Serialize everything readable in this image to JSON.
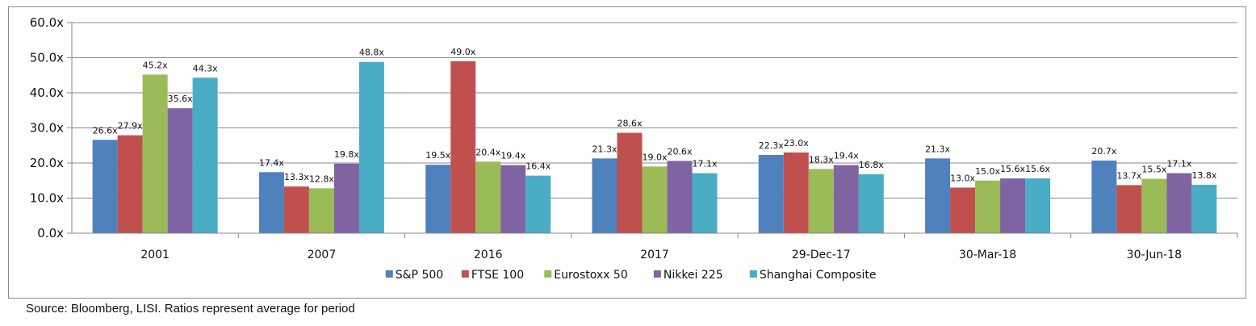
{
  "chart_data": {
    "type": "bar",
    "title": "",
    "xlabel": "",
    "ylabel": "",
    "ylim": [
      0,
      60
    ],
    "y_ticks": [
      "0.0x",
      "10.0x",
      "20.0x",
      "30.0x",
      "40.0x",
      "50.0x",
      "60.0x"
    ],
    "y_tick_values": [
      0,
      10,
      20,
      30,
      40,
      50,
      60
    ],
    "grid": true,
    "legend_position": "bottom",
    "categories": [
      "2001",
      "2007",
      "2016",
      "2017",
      "29-Dec-17",
      "30-Mar-18",
      "30-Jun-18"
    ],
    "series": [
      {
        "name": "S&P 500",
        "color": "#4f81bd",
        "values": [
          26.6,
          17.4,
          19.5,
          21.3,
          22.3,
          21.3,
          20.7
        ],
        "labels": [
          "26.6x",
          "17.4x",
          "19.5x",
          "21.3x",
          "22.3x",
          "21.3x",
          "20.7x"
        ]
      },
      {
        "name": "FTSE 100",
        "color": "#c0504d",
        "values": [
          27.9,
          13.3,
          49.0,
          28.6,
          23.0,
          13.0,
          13.7
        ],
        "labels": [
          "27.9x",
          "13.3x",
          "49.0x",
          "28.6x",
          "23.0x",
          "13.0x",
          "13.7x"
        ]
      },
      {
        "name": "Eurostoxx 50",
        "color": "#9bbb59",
        "values": [
          45.2,
          12.8,
          20.4,
          19.0,
          18.3,
          15.0,
          15.5
        ],
        "labels": [
          "45.2x",
          "12.8x",
          "20.4x",
          "19.0x",
          "18.3x",
          "15.0x",
          "15.5x"
        ]
      },
      {
        "name": "Nikkei 225",
        "color": "#8064a2",
        "values": [
          35.6,
          19.8,
          19.4,
          20.6,
          19.4,
          15.6,
          17.1
        ],
        "labels": [
          "35.6x",
          "19.8x",
          "19.4x",
          "20.6x",
          "19.4x",
          "15.6x",
          "17.1x"
        ]
      },
      {
        "name": "Shanghai Composite",
        "color": "#4bacc6",
        "values": [
          44.3,
          48.8,
          16.4,
          17.1,
          16.8,
          15.6,
          13.8
        ],
        "labels": [
          "44.3x",
          "48.8x",
          "16.4x",
          "17.1x",
          "16.8x",
          "15.6x",
          "13.8x"
        ]
      }
    ]
  },
  "source_note": "Source: Bloomberg, LISI. Ratios represent average for period"
}
